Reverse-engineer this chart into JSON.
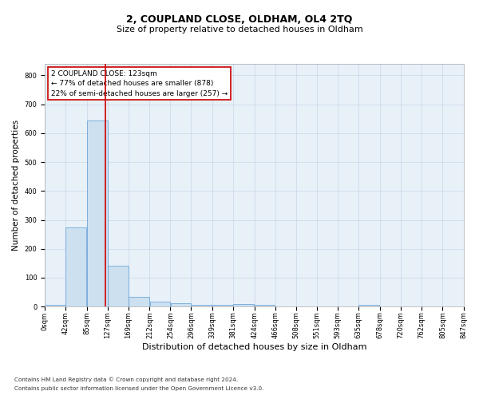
{
  "title": "2, COUPLAND CLOSE, OLDHAM, OL4 2TQ",
  "subtitle": "Size of property relative to detached houses in Oldham",
  "xlabel": "Distribution of detached houses by size in Oldham",
  "ylabel": "Number of detached properties",
  "footnote1": "Contains HM Land Registry data © Crown copyright and database right 2024.",
  "footnote2": "Contains public sector information licensed under the Open Government Licence v3.0.",
  "bar_values": [
    5,
    275,
    643,
    140,
    33,
    17,
    11,
    7,
    7,
    8,
    5,
    0,
    0,
    0,
    0,
    7,
    0,
    0,
    0
  ],
  "bin_edges": [
    0,
    42,
    85,
    127,
    169,
    212,
    254,
    296,
    339,
    381,
    424,
    466,
    508,
    551,
    593,
    635,
    678,
    720,
    762,
    805
  ],
  "tick_labels": [
    "0sqm",
    "42sqm",
    "85sqm",
    "127sqm",
    "169sqm",
    "212sqm",
    "254sqm",
    "296sqm",
    "339sqm",
    "381sqm",
    "424sqm",
    "466sqm",
    "508sqm",
    "551sqm",
    "593sqm",
    "635sqm",
    "678sqm",
    "720sqm",
    "762sqm",
    "805sqm",
    "847sqm"
  ],
  "bar_color": "#cce0f0",
  "bar_edge_color": "#5b9bd5",
  "vline_x": 123,
  "vline_color": "#cc0000",
  "annotation_text": "2 COUPLAND CLOSE: 123sqm\n← 77% of detached houses are smaller (878)\n22% of semi-detached houses are larger (257) →",
  "annotation_box_color": "#ffffff",
  "annotation_box_edge": "#cc0000",
  "ylim": [
    0,
    840
  ],
  "yticks": [
    0,
    100,
    200,
    300,
    400,
    500,
    600,
    700,
    800
  ],
  "grid_color": "#c8d8e8",
  "bg_color": "#e8f0f8",
  "title_fontsize": 9,
  "subtitle_fontsize": 8,
  "axis_label_fontsize": 7.5,
  "tick_fontsize": 6,
  "annot_fontsize": 6.5,
  "footnote_fontsize": 5.2
}
